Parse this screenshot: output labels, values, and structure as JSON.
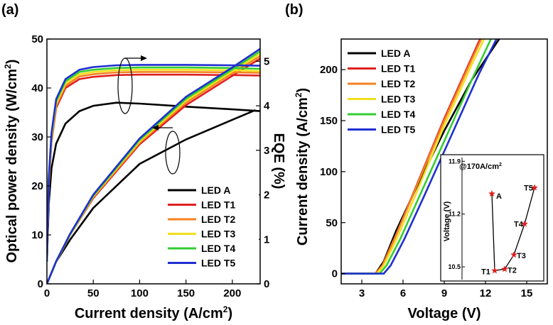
{
  "chart_data": [
    {
      "panel": "(a)",
      "type": "line",
      "xlabel": "Current density (A/cm",
      "xlabel_sup": "2",
      "xlabel_end": ")",
      "ylabel": "Optical power density (W/cm",
      "ylabel_sup": "2",
      "ylabel_end": ")",
      "y2label": "EQE (%)",
      "xlim": [
        0,
        230
      ],
      "ylim": [
        0,
        50
      ],
      "y2lim": [
        0,
        5.5
      ],
      "xticks": [
        "0",
        "50",
        "100",
        "150",
        "200"
      ],
      "yticks": [
        "0",
        "10",
        "20",
        "30",
        "40",
        "50"
      ],
      "y2ticks": [
        "0",
        "1",
        "2",
        "3",
        "4",
        "5"
      ],
      "legend_position": "lower-right",
      "series": [
        {
          "name": "LED A",
          "color": "#000000",
          "power": [
            [
              0,
              0
            ],
            [
              10,
              4.5
            ],
            [
              25,
              9
            ],
            [
              50,
              15.5
            ],
            [
              100,
              24.5
            ],
            [
              150,
              29.5
            ],
            [
              200,
              33.5
            ],
            [
              225,
              35.5
            ]
          ],
          "eqe": [
            [
              0,
              0.5
            ],
            [
              2,
              1.8
            ],
            [
              5,
              2.6
            ],
            [
              10,
              3.15
            ],
            [
              20,
              3.6
            ],
            [
              35,
              3.88
            ],
            [
              50,
              4.0
            ],
            [
              75,
              4.07
            ],
            [
              100,
              4.05
            ],
            [
              150,
              3.98
            ],
            [
              200,
              3.92
            ],
            [
              230,
              3.88
            ]
          ]
        },
        {
          "name": "LED T1",
          "color": "#e02020",
          "power": [
            [
              0,
              0
            ],
            [
              10,
              4.5
            ],
            [
              25,
              10
            ],
            [
              50,
              17.5
            ],
            [
              100,
              28.5
            ],
            [
              150,
              36.5
            ],
            [
              200,
              42.5
            ],
            [
              230,
              46
            ]
          ],
          "eqe": [
            [
              0,
              0.5
            ],
            [
              2,
              2.2
            ],
            [
              5,
              3.2
            ],
            [
              10,
              3.95
            ],
            [
              20,
              4.4
            ],
            [
              35,
              4.6
            ],
            [
              50,
              4.65
            ],
            [
              75,
              4.69
            ],
            [
              100,
              4.7
            ],
            [
              150,
              4.7
            ],
            [
              200,
              4.69
            ],
            [
              230,
              4.68
            ]
          ]
        },
        {
          "name": "LED T2",
          "color": "#f58220",
          "power": [
            [
              0,
              0
            ],
            [
              10,
              4.5
            ],
            [
              25,
              10
            ],
            [
              50,
              17.7
            ],
            [
              100,
              28.8
            ],
            [
              150,
              37
            ],
            [
              200,
              43
            ],
            [
              230,
              46.5
            ]
          ],
          "eqe": [
            [
              0,
              0.5
            ],
            [
              2,
              2.25
            ],
            [
              5,
              3.25
            ],
            [
              10,
              4.0
            ],
            [
              20,
              4.45
            ],
            [
              35,
              4.66
            ],
            [
              50,
              4.71
            ],
            [
              75,
              4.75
            ],
            [
              100,
              4.76
            ],
            [
              150,
              4.76
            ],
            [
              200,
              4.75
            ],
            [
              230,
              4.74
            ]
          ]
        },
        {
          "name": "LED T3",
          "color": "#f2e01e",
          "power": [
            [
              0,
              0
            ],
            [
              10,
              4.5
            ],
            [
              25,
              10
            ],
            [
              50,
              17.9
            ],
            [
              100,
              29.1
            ],
            [
              150,
              37.4
            ],
            [
              200,
              43.4
            ],
            [
              230,
              47
            ]
          ],
          "eqe": [
            [
              0,
              0.5
            ],
            [
              2,
              2.3
            ],
            [
              5,
              3.3
            ],
            [
              10,
              4.05
            ],
            [
              20,
              4.5
            ],
            [
              35,
              4.71
            ],
            [
              50,
              4.76
            ],
            [
              75,
              4.8
            ],
            [
              100,
              4.81
            ],
            [
              150,
              4.81
            ],
            [
              200,
              4.8
            ],
            [
              230,
              4.78
            ]
          ]
        },
        {
          "name": "LED T4",
          "color": "#33cc33",
          "power": [
            [
              0,
              0
            ],
            [
              10,
              4.6
            ],
            [
              25,
              10.1
            ],
            [
              50,
              18
            ],
            [
              100,
              29.4
            ],
            [
              150,
              37.8
            ],
            [
              200,
              43.8
            ],
            [
              230,
              47.5
            ]
          ],
          "eqe": [
            [
              0,
              0.5
            ],
            [
              2,
              2.35
            ],
            [
              5,
              3.35
            ],
            [
              10,
              4.1
            ],
            [
              20,
              4.55
            ],
            [
              35,
              4.76
            ],
            [
              50,
              4.81
            ],
            [
              75,
              4.85
            ],
            [
              100,
              4.86
            ],
            [
              150,
              4.86
            ],
            [
              200,
              4.85
            ],
            [
              230,
              4.83
            ]
          ]
        },
        {
          "name": "LED T5",
          "color": "#1f2fd0",
          "power": [
            [
              0,
              0
            ],
            [
              10,
              4.6
            ],
            [
              25,
              10.2
            ],
            [
              50,
              18.2
            ],
            [
              100,
              29.7
            ],
            [
              150,
              38.2
            ],
            [
              200,
              44.2
            ],
            [
              230,
              48
            ]
          ],
          "eqe": [
            [
              0,
              0.5
            ],
            [
              2,
              2.4
            ],
            [
              5,
              3.4
            ],
            [
              10,
              4.15
            ],
            [
              20,
              4.6
            ],
            [
              35,
              4.81
            ],
            [
              50,
              4.87
            ],
            [
              75,
              4.91
            ],
            [
              100,
              4.92
            ],
            [
              150,
              4.92
            ],
            [
              200,
              4.91
            ],
            [
              230,
              4.9
            ]
          ]
        }
      ]
    },
    {
      "panel": "(b)",
      "type": "line",
      "xlabel": "Voltage (V)",
      "ylabel": "Current density (A/cm",
      "ylabel_sup": "2",
      "ylabel_end": ")",
      "xlim": [
        1.5,
        16.5
      ],
      "ylim": [
        -10,
        230
      ],
      "xticks": [
        "3",
        "6",
        "9",
        "12",
        "15"
      ],
      "yticks": [
        "0",
        "50",
        "100",
        "150",
        "200"
      ],
      "legend_position": "top-left",
      "series": [
        {
          "name": "LED A",
          "color": "#000000",
          "curve": [
            [
              1.5,
              0
            ],
            [
              4.0,
              0
            ],
            [
              4.6,
              12
            ],
            [
              5.5,
              42
            ],
            [
              7,
              85
            ],
            [
              9,
              140
            ],
            [
              11,
              190
            ],
            [
              13,
              230
            ]
          ]
        },
        {
          "name": "LED T1",
          "color": "#e02020",
          "curve": [
            [
              1.5,
              0
            ],
            [
              4.0,
              0
            ],
            [
              4.5,
              8
            ],
            [
              5.5,
              38
            ],
            [
              7,
              87
            ],
            [
              9,
              152
            ],
            [
              11,
              212
            ],
            [
              11.6,
              230
            ]
          ]
        },
        {
          "name": "LED T2",
          "color": "#f58220",
          "curve": [
            [
              1.5,
              0
            ],
            [
              4.0,
              0
            ],
            [
              4.5,
              8
            ],
            [
              5.5,
              38
            ],
            [
              7,
              86
            ],
            [
              9,
              150
            ],
            [
              11,
              210
            ],
            [
              11.7,
              230
            ]
          ]
        },
        {
          "name": "LED T3",
          "color": "#f2e01e",
          "curve": [
            [
              1.5,
              0
            ],
            [
              4.1,
              0
            ],
            [
              4.6,
              8
            ],
            [
              5.6,
              36
            ],
            [
              7,
              80
            ],
            [
              9,
              145
            ],
            [
              11,
              205
            ],
            [
              11.9,
              230
            ]
          ]
        },
        {
          "name": "LED T4",
          "color": "#33cc33",
          "curve": [
            [
              1.5,
              0
            ],
            [
              4.3,
              0
            ],
            [
              4.8,
              8
            ],
            [
              5.8,
              34
            ],
            [
              7,
              70
            ],
            [
              9,
              130
            ],
            [
              11,
              190
            ],
            [
              12.4,
              230
            ]
          ]
        },
        {
          "name": "LED T5",
          "color": "#1f2fd0",
          "curve": [
            [
              1.5,
              0
            ],
            [
              4.6,
              0
            ],
            [
              5.1,
              8
            ],
            [
              6.1,
              34
            ],
            [
              7.5,
              75
            ],
            [
              9.5,
              135
            ],
            [
              11.5,
              195
            ],
            [
              12.8,
              230
            ]
          ]
        }
      ],
      "inset": {
        "type": "line",
        "annotation": "@170A/cm",
        "annotation_sup": "2",
        "ylabel": "Voltage (V)",
        "yticks": [
          "10.5",
          "11.2",
          "11.9"
        ],
        "ylim": [
          10.35,
          11.95
        ],
        "categories": [
          "A",
          "T1",
          "T2",
          "T3",
          "T4",
          "T5"
        ],
        "values": [
          11.47,
          10.45,
          10.47,
          10.66,
          11.07,
          11.55
        ],
        "marker_color": "#e02020"
      }
    }
  ],
  "panels": {
    "a_label": "(a)",
    "b_label": "(b)"
  }
}
